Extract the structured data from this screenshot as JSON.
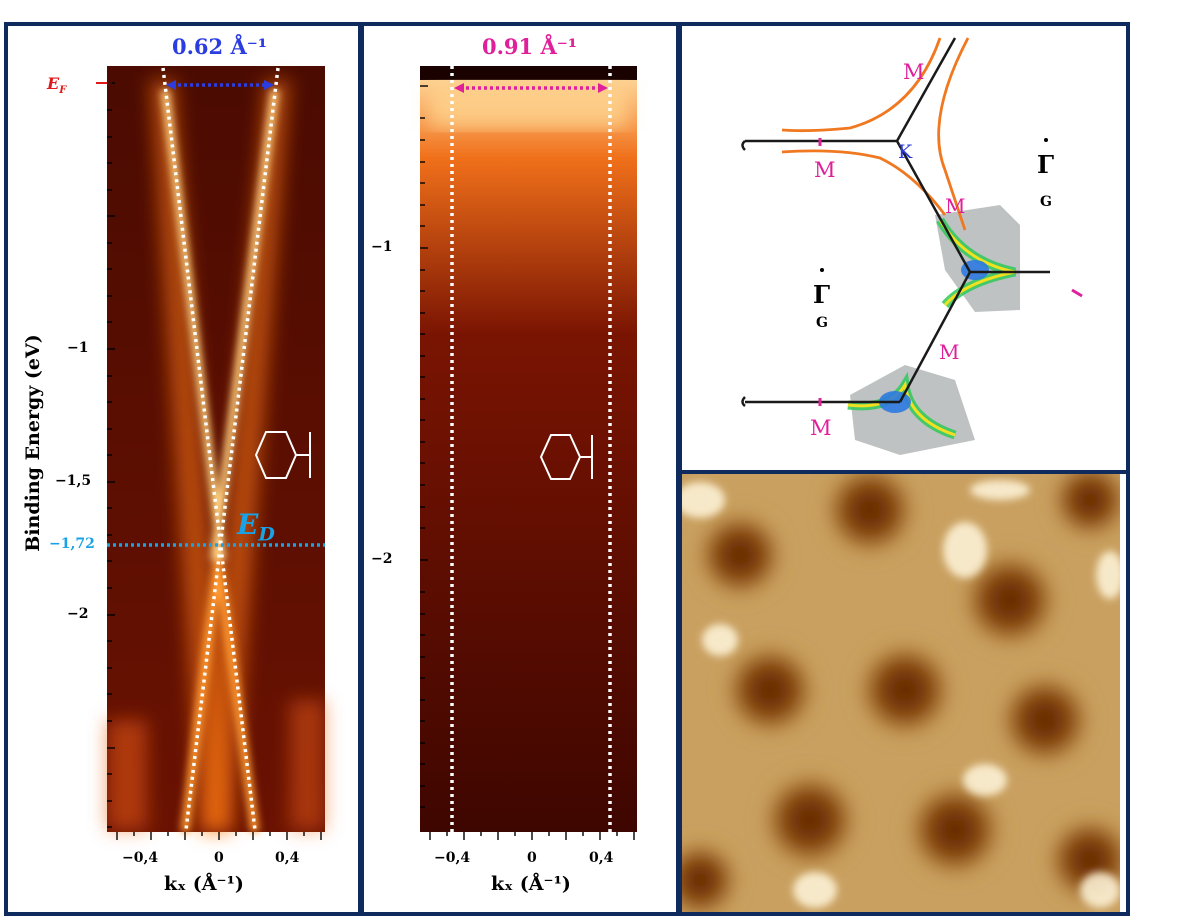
{
  "colors": {
    "frame": "#0f2a5c",
    "blue_annotation": "#2b3de0",
    "magenta_annotation": "#e0209a",
    "fermi_red": "#e01a1a",
    "dirac_cyan": "#19a3e6",
    "fs_orange": "#f07820"
  },
  "panel_a": {
    "width_label": "0.62 Å⁻¹",
    "fermi_label": "E",
    "fermi_sub": "F",
    "dirac_label": "E",
    "dirac_sub": "D",
    "y_axis_title": "Binding Energy (eV)",
    "y_ticks": [
      "−1",
      "−1,5",
      "−1,72",
      "−2"
    ],
    "x_ticks": [
      "−0,4",
      "0",
      "0,4"
    ],
    "x_axis_title": "kₓ (Å⁻¹)",
    "icon": "hexagon-icon"
  },
  "panel_b": {
    "width_label": "0.91 Å⁻¹",
    "y_ticks": [
      "−1",
      "−2"
    ],
    "x_ticks": [
      "−0,4",
      "0",
      "0,4"
    ],
    "x_axis_title": "kₓ (Å⁻¹)",
    "icon": "hexagon-icon"
  },
  "panel_c": {
    "m_label": "M",
    "k_label": "K",
    "gamma_label": "Γ",
    "g_label": "G"
  },
  "panel_d": {
    "image": "stm-topography"
  }
}
